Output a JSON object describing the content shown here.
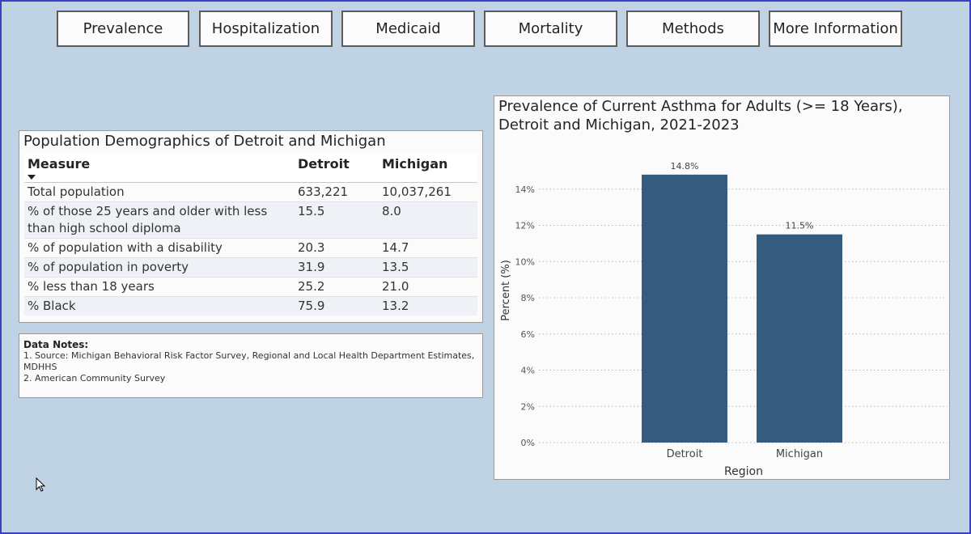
{
  "nav": {
    "prevalence": "Prevalence",
    "hospitalization": "Hospitalization",
    "medicaid": "Medicaid",
    "mortality": "Mortality",
    "methods": "Methods",
    "more_info": "More Information"
  },
  "demographics": {
    "title": "Population Demographics of Detroit and Michigan",
    "headers": [
      "Measure",
      "Detroit",
      "Michigan"
    ],
    "rows": [
      [
        "Total population",
        "633,221",
        "10,037,261"
      ],
      [
        "% of those 25 years and older with less than high school diploma",
        "15.5",
        "8.0"
      ],
      [
        "% of population with a disability",
        "20.3",
        "14.7"
      ],
      [
        "% of population in poverty",
        "31.9",
        "13.5"
      ],
      [
        "% less than 18 years",
        "25.2",
        "21.0"
      ],
      [
        "% Black",
        "75.9",
        "13.2"
      ]
    ]
  },
  "notes": {
    "header": "Data Notes:",
    "line1": "1. Source: Michigan Behavioral Risk Factor Survey, Regional and Local Health Department Estimates, MDHHS",
    "line2": "2. American Community Survey"
  },
  "chart_data": {
    "type": "bar",
    "title": "Prevalence of Current Asthma for Adults (>= 18 Years), Detroit and Michigan, 2021-2023",
    "categories": [
      "Detroit",
      "Michigan"
    ],
    "values": [
      14.8,
      11.5
    ],
    "data_labels": [
      "14.8%",
      "11.5%"
    ],
    "xlabel": "Region",
    "ylabel": "Percent (%)",
    "ylim": [
      0,
      16
    ],
    "yticks": [
      0,
      2,
      4,
      6,
      8,
      10,
      12,
      14
    ],
    "ytick_labels": [
      "0%",
      "2%",
      "4%",
      "6%",
      "8%",
      "10%",
      "12%",
      "14%"
    ],
    "grid": true,
    "bar_color": "#355b7e"
  },
  "colors": {
    "background": "#bfd3e4",
    "bar": "#355b7e",
    "frame": "#3a3fc4"
  }
}
